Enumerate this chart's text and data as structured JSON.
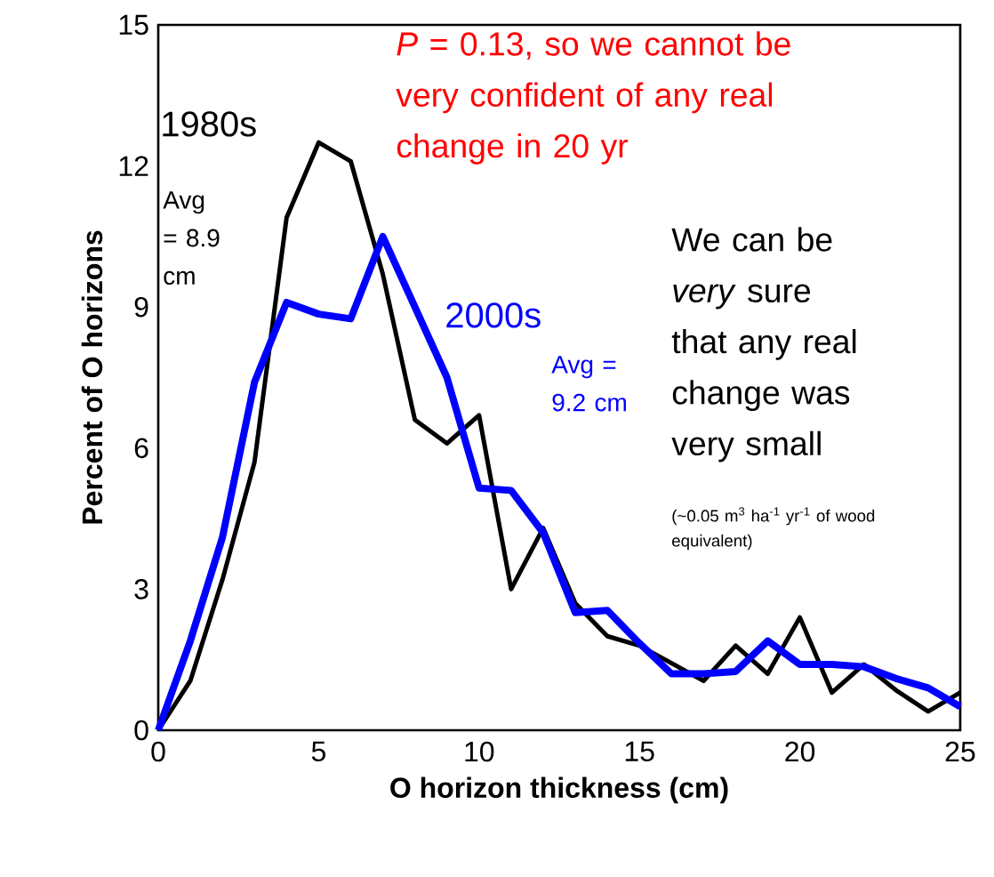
{
  "chart_data": {
    "type": "line",
    "xlabel": "O horizon thickness (cm)",
    "ylabel": "Percent of O horizons",
    "x": [
      0,
      1,
      2,
      3,
      4,
      5,
      6,
      7,
      8,
      9,
      10,
      11,
      12,
      13,
      14,
      15,
      16,
      17,
      18,
      19,
      20,
      21,
      22,
      23,
      24,
      25
    ],
    "series": [
      {
        "name": "1980s",
        "color": "#000000",
        "values": [
          0,
          1.05,
          3.2,
          5.7,
          10.9,
          12.5,
          12.1,
          9.7,
          6.6,
          6.1,
          6.7,
          3.0,
          4.3,
          2.7,
          2.0,
          1.8,
          null,
          1.05,
          1.8,
          1.2,
          2.4,
          0.8,
          1.4,
          0.85,
          0.4,
          0.8
        ]
      },
      {
        "name": "2000s",
        "color": "#0000ff",
        "values": [
          0,
          1.9,
          4.1,
          7.4,
          9.1,
          8.85,
          8.75,
          10.5,
          9.0,
          7.5,
          5.15,
          5.1,
          4.2,
          2.5,
          2.55,
          1.85,
          1.2,
          1.2,
          1.25,
          1.9,
          1.4,
          1.4,
          1.35,
          1.1,
          0.9,
          0.5
        ]
      }
    ],
    "xlim": [
      0,
      25
    ],
    "ylim": [
      0,
      15
    ],
    "xticks": [
      0,
      5,
      10,
      15,
      20,
      25
    ],
    "yticks": [
      0,
      3,
      6,
      9,
      12,
      15
    ],
    "grid": false,
    "annotations": [
      "*P* = 0.13, so we cannot be very confident of any real change in 20 yr",
      "Avg = 8.9 cm",
      "Avg = 9.2 cm",
      "We can be *very* sure that any real change was very small",
      "(~0.05 m$^{3}$ ha$^{-1}$ yr$^{-1}$ of wood equivalent)"
    ]
  }
}
